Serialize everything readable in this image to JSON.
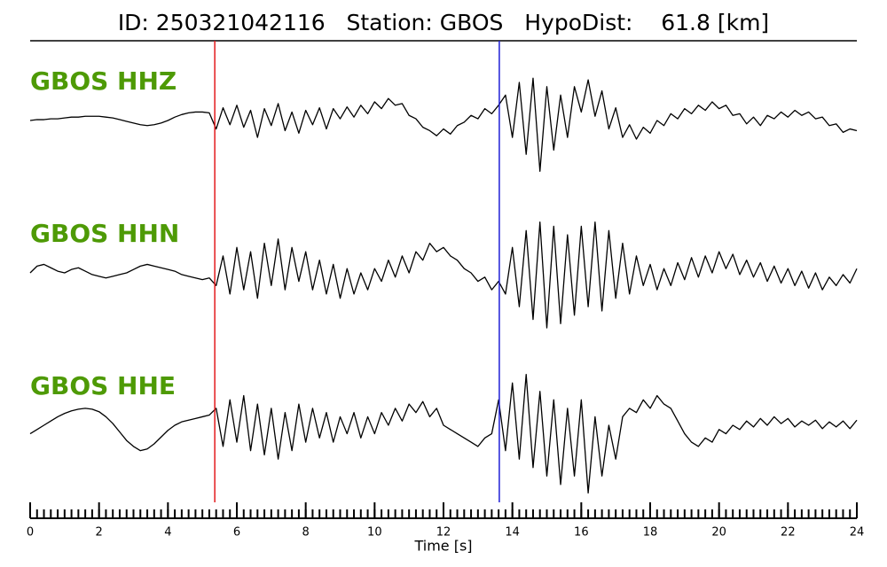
{
  "chart_data": {
    "type": "line",
    "title": "ID: 250321042116   Station: GBOS   HypoDist:    61.8 [km]",
    "xlabel": "Time [s]",
    "xlim": [
      0,
      24
    ],
    "xticks": [
      0,
      2,
      4,
      6,
      8,
      10,
      12,
      14,
      16,
      18,
      20,
      22,
      24
    ],
    "minor_tick_step": 0.2,
    "ylim": [
      -90,
      90
    ],
    "label_color": "#4e9a06",
    "picks": [
      {
        "x": 5.36,
        "color": "#e31a1c"
      },
      {
        "x": 13.62,
        "color": "#1f1fd6"
      }
    ],
    "x": [
      0,
      0.2,
      0.4,
      0.6,
      0.8,
      1,
      1.2,
      1.4,
      1.6,
      1.8,
      2,
      2.2,
      2.4,
      2.6,
      2.8,
      3,
      3.2,
      3.4,
      3.6,
      3.8,
      4,
      4.2,
      4.4,
      4.6,
      4.8,
      5,
      5.2,
      5.4,
      5.6,
      5.8,
      6,
      6.2,
      6.4,
      6.6,
      6.8,
      7,
      7.2,
      7.4,
      7.6,
      7.8,
      8,
      8.2,
      8.4,
      8.6,
      8.8,
      9,
      9.2,
      9.4,
      9.6,
      9.8,
      10,
      10.2,
      10.4,
      10.6,
      10.8,
      11,
      11.2,
      11.4,
      11.6,
      11.8,
      12,
      12.2,
      12.4,
      12.6,
      12.8,
      13,
      13.2,
      13.4,
      13.6,
      13.8,
      14,
      14.2,
      14.4,
      14.6,
      14.8,
      15,
      15.2,
      15.4,
      15.6,
      15.8,
      16,
      16.2,
      16.4,
      16.6,
      16.8,
      17,
      17.2,
      17.4,
      17.6,
      17.8,
      18,
      18.2,
      18.4,
      18.6,
      18.8,
      19,
      19.2,
      19.4,
      19.6,
      19.8,
      20,
      20.2,
      20.4,
      20.6,
      20.8,
      21,
      21.2,
      21.4,
      21.6,
      21.8,
      22,
      22.2,
      22.4,
      22.6,
      22.8,
      23,
      23.2,
      23.4,
      23.6,
      23.8,
      24
    ],
    "series": [
      {
        "name": "GBOS HHZ",
        "color": "#000000",
        "values": [
          0,
          1,
          1,
          2,
          2,
          3,
          4,
          4,
          5,
          5,
          5,
          4,
          3,
          1,
          -1,
          -3,
          -5,
          -6,
          -5,
          -3,
          0,
          4,
          7,
          9,
          10,
          10,
          9,
          -10,
          15,
          -5,
          18,
          -8,
          12,
          -20,
          14,
          -6,
          20,
          -12,
          10,
          -15,
          12,
          -5,
          15,
          -10,
          14,
          2,
          16,
          4,
          18,
          8,
          22,
          14,
          26,
          18,
          20,
          6,
          2,
          -8,
          -12,
          -18,
          -10,
          -16,
          -6,
          -2,
          6,
          2,
          14,
          8,
          18,
          30,
          -20,
          45,
          -40,
          50,
          -60,
          40,
          -35,
          30,
          -20,
          40,
          10,
          48,
          5,
          35,
          -10,
          15,
          -20,
          -5,
          -22,
          -8,
          -15,
          0,
          -6,
          8,
          2,
          14,
          8,
          18,
          12,
          22,
          14,
          18,
          6,
          8,
          -4,
          4,
          -6,
          6,
          2,
          10,
          4,
          12,
          6,
          10,
          2,
          4,
          -6,
          -4,
          -14,
          -10,
          -12
        ]
      },
      {
        "name": "GBOS HHN",
        "color": "#000000",
        "values": [
          0,
          8,
          10,
          6,
          2,
          0,
          4,
          6,
          2,
          -2,
          -4,
          -6,
          -4,
          -2,
          0,
          4,
          8,
          10,
          8,
          6,
          4,
          2,
          -2,
          -4,
          -6,
          -8,
          -6,
          -15,
          20,
          -25,
          30,
          -20,
          25,
          -30,
          35,
          -15,
          40,
          -20,
          30,
          -10,
          25,
          -20,
          15,
          -25,
          10,
          -30,
          5,
          -25,
          0,
          -20,
          5,
          -10,
          15,
          -5,
          20,
          0,
          25,
          15,
          35,
          25,
          30,
          20,
          15,
          5,
          0,
          -10,
          -5,
          -20,
          -10,
          -25,
          30,
          -40,
          50,
          -55,
          60,
          -65,
          55,
          -60,
          45,
          -50,
          55,
          -40,
          60,
          -45,
          50,
          -30,
          35,
          -25,
          20,
          -15,
          10,
          -20,
          5,
          -15,
          12,
          -8,
          18,
          -5,
          20,
          0,
          25,
          5,
          22,
          -2,
          15,
          -5,
          12,
          -10,
          8,
          -12,
          5,
          -15,
          2,
          -18,
          0,
          -20,
          -5,
          -15,
          -2,
          -12,
          5
        ]
      },
      {
        "name": "GBOS HHE",
        "color": "#000000",
        "values": [
          -10,
          -5,
          0,
          5,
          10,
          14,
          17,
          19,
          20,
          19,
          16,
          10,
          2,
          -8,
          -18,
          -25,
          -30,
          -28,
          -22,
          -14,
          -6,
          0,
          4,
          6,
          8,
          10,
          12,
          20,
          -25,
          30,
          -20,
          35,
          -30,
          25,
          -35,
          20,
          -40,
          15,
          -30,
          25,
          -20,
          20,
          -15,
          15,
          -20,
          10,
          -10,
          15,
          -15,
          10,
          -10,
          15,
          0,
          20,
          5,
          25,
          15,
          28,
          10,
          20,
          0,
          -5,
          -10,
          -15,
          -20,
          -25,
          -15,
          -10,
          30,
          -30,
          50,
          -40,
          60,
          -50,
          40,
          -60,
          30,
          -70,
          20,
          -60,
          30,
          -80,
          10,
          -60,
          0,
          -40,
          10,
          20,
          15,
          30,
          20,
          35,
          25,
          20,
          5,
          -10,
          -20,
          -25,
          -15,
          -20,
          -5,
          -10,
          0,
          -5,
          5,
          -2,
          8,
          0,
          10,
          2,
          8,
          -2,
          5,
          0,
          6,
          -4,
          4,
          -2,
          5,
          -4,
          6
        ]
      }
    ]
  }
}
